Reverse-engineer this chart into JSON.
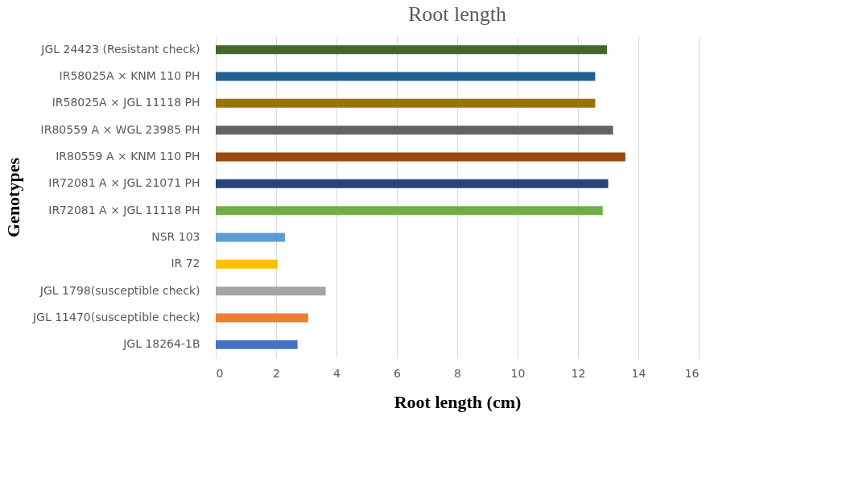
{
  "chart_data": {
    "type": "bar",
    "orientation": "horizontal",
    "title": "Root length",
    "xlabel": "Root length (cm)",
    "ylabel": "Genotypes",
    "categories": [
      "JGL 24423 (Resistant check)",
      "IR58025A × KNM 110 PH",
      "IR58025A × JGL 11118 PH",
      "IR80559 A × WGL 23985 PH",
      "IR80559 A × KNM 110 PH",
      "IR72081 A × JGL 21071 PH",
      "IR72081 A × JGL 11118 PH",
      "NSR 103",
      "IR 72",
      "JGL 1798(susceptible check)",
      "JGL 11470(susceptible check)",
      "JGL 18264-1B"
    ],
    "values": [
      12.96,
      12.57,
      12.57,
      13.16,
      13.57,
      13.0,
      12.82,
      2.29,
      2.05,
      3.64,
      3.06,
      2.71
    ],
    "colors": [
      "#43682b",
      "#255e91",
      "#997300",
      "#636363",
      "#9e480e",
      "#264478",
      "#70ad47",
      "#5b9bd5",
      "#ffc000",
      "#a5a5a5",
      "#ed7d31",
      "#4472c4"
    ],
    "xlim": [
      0,
      16
    ],
    "xticks": [
      0,
      2,
      4,
      6,
      8,
      10,
      12,
      14,
      16
    ],
    "grid": "x"
  }
}
